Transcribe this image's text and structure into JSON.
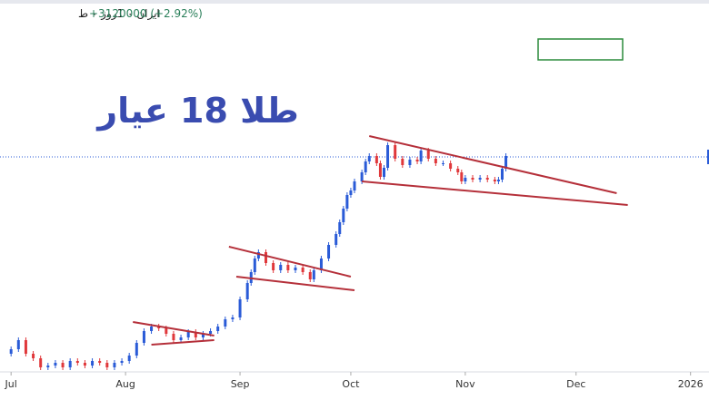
{
  "chart_data": {
    "type": "candlestick",
    "header": {
      "symbol": "ایران ۰ 1روز ۰ ط",
      "change": "+3120000 (+2.92%)"
    },
    "title": "طلا 18 عیار",
    "xlim": [
      -3,
      189
    ],
    "ylim": [
      0,
      420
    ],
    "xticks": [
      {
        "value": 0,
        "label": "Jul"
      },
      {
        "value": 31,
        "label": "Aug"
      },
      {
        "value": 62,
        "label": "Sep"
      },
      {
        "value": 92,
        "label": "Oct"
      },
      {
        "value": 123,
        "label": "Nov"
      },
      {
        "value": 153,
        "label": "Dec"
      },
      {
        "value": 184,
        "label": "2026"
      }
    ],
    "up_color": "#2a5bd7",
    "down_color": "#e0383b",
    "trendline_color": "#b5303a",
    "current_price": 247,
    "series": [
      {
        "x": [
          0,
          2,
          4,
          6,
          8,
          10,
          12,
          14,
          16,
          18,
          20,
          22,
          24,
          26,
          28,
          30,
          32,
          34,
          36,
          38,
          40,
          42,
          44,
          46,
          48,
          50,
          52,
          54,
          56,
          58,
          60,
          62,
          64,
          65,
          66,
          67,
          69,
          71,
          73,
          75,
          77,
          79,
          81,
          82,
          84,
          86,
          88,
          89,
          90,
          91,
          92,
          93,
          95,
          96,
          97,
          99,
          100,
          101,
          102,
          104,
          106,
          108,
          110,
          111,
          113,
          115,
          117,
          119,
          121,
          122,
          123,
          125,
          127,
          129,
          131,
          132,
          133,
          134
        ],
        "open": [
          30,
          35,
          45,
          30,
          25,
          15,
          17,
          20,
          15,
          22,
          20,
          17,
          22,
          20,
          15,
          20,
          22,
          28,
          42,
          55,
          60,
          58,
          52,
          45,
          48,
          54,
          48,
          52,
          55,
          60,
          68,
          70,
          90,
          108,
          120,
          135,
          142,
          130,
          122,
          128,
          122,
          125,
          120,
          112,
          122,
          135,
          150,
          162,
          175,
          190,
          205,
          210,
          220,
          230,
          242,
          248,
          240,
          225,
          235,
          260,
          245,
          238,
          244,
          242,
          254,
          245,
          240,
          240,
          234,
          230,
          220,
          224,
          222,
          224,
          222,
          220,
          222,
          234
        ],
        "close": [
          35,
          45,
          30,
          25,
          15,
          17,
          20,
          15,
          22,
          20,
          17,
          22,
          20,
          15,
          20,
          22,
          28,
          42,
          55,
          60,
          58,
          52,
          45,
          48,
          54,
          48,
          52,
          55,
          60,
          68,
          70,
          90,
          108,
          120,
          135,
          142,
          130,
          122,
          128,
          122,
          125,
          120,
          112,
          122,
          135,
          150,
          162,
          175,
          190,
          205,
          210,
          220,
          230,
          242,
          248,
          240,
          225,
          235,
          260,
          245,
          238,
          244,
          242,
          254,
          245,
          240,
          240,
          234,
          230,
          220,
          224,
          222,
          224,
          222,
          220,
          222,
          234,
          248
        ]
      }
    ],
    "trendlines": [
      {
        "x": [
          33,
          55
        ],
        "y": [
          65,
          50
        ]
      },
      {
        "x": [
          38,
          55
        ],
        "y": [
          40,
          45
        ]
      },
      {
        "x": [
          59,
          92
        ],
        "y": [
          148,
          115
        ]
      },
      {
        "x": [
          61,
          93
        ],
        "y": [
          115,
          100
        ]
      },
      {
        "x": [
          97,
          164
        ],
        "y": [
          270,
          207
        ]
      },
      {
        "x": [
          95,
          167
        ],
        "y": [
          220,
          194
        ]
      }
    ]
  }
}
